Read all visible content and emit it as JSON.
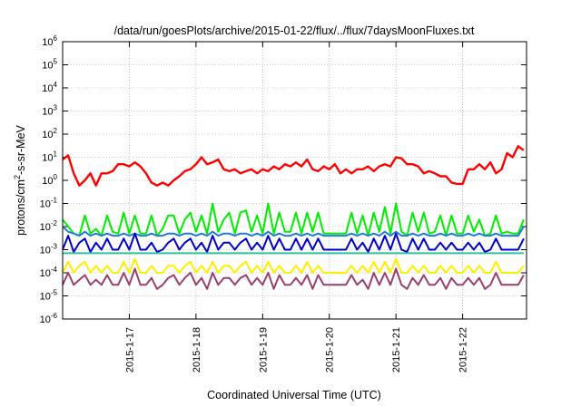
{
  "chart_data": {
    "type": "line",
    "title": "/data/run/goesPlots/archive/2015-01-22/flux/../flux/7daysMoonFluxes.txt",
    "xlabel": "Coordinated Universal Time (UTC)",
    "ylabel": {
      "pre": "protons/cm",
      "sup": "2",
      "post": "-s-sr-MeV"
    },
    "y_scale": "log",
    "ylim": [
      1e-06,
      1000000.0
    ],
    "y_ticks": [
      {
        "base": "10",
        "exp": "6"
      },
      {
        "base": "10",
        "exp": "5"
      },
      {
        "base": "10",
        "exp": "4"
      },
      {
        "base": "10",
        "exp": "3"
      },
      {
        "base": "10",
        "exp": "2"
      },
      {
        "base": "10",
        "exp": "1"
      },
      {
        "base": "10",
        "exp": "0"
      },
      {
        "base": "10",
        "exp": "-1"
      },
      {
        "base": "10",
        "exp": "-2"
      },
      {
        "base": "10",
        "exp": "-3"
      },
      {
        "base": "10",
        "exp": "-4"
      },
      {
        "base": "10",
        "exp": "-5"
      },
      {
        "base": "10",
        "exp": "-6"
      }
    ],
    "xlim": [
      "2015-01-16T00:00",
      "2015-01-22T23:00"
    ],
    "x_ticks": [
      "2015-1-17",
      "2015-1-18",
      "2015-1-19",
      "2015-1-20",
      "2015-1-21",
      "2015-1-22"
    ],
    "grid": true,
    "legend": "none",
    "x": [
      "2015-01-16T00:00",
      "2015-01-16T02:00",
      "2015-01-16T04:00",
      "2015-01-16T06:00",
      "2015-01-16T08:00",
      "2015-01-16T10:00",
      "2015-01-16T12:00",
      "2015-01-16T14:00",
      "2015-01-16T16:00",
      "2015-01-16T18:00",
      "2015-01-16T20:00",
      "2015-01-16T22:00",
      "2015-01-17T00:00",
      "2015-01-17T02:00",
      "2015-01-17T04:00",
      "2015-01-17T06:00",
      "2015-01-17T08:00",
      "2015-01-17T10:00",
      "2015-01-17T12:00",
      "2015-01-17T14:00",
      "2015-01-17T16:00",
      "2015-01-17T18:00",
      "2015-01-17T20:00",
      "2015-01-17T22:00",
      "2015-01-18T00:00",
      "2015-01-18T02:00",
      "2015-01-18T04:00",
      "2015-01-18T06:00",
      "2015-01-18T08:00",
      "2015-01-18T10:00",
      "2015-01-18T12:00",
      "2015-01-18T14:00",
      "2015-01-18T16:00",
      "2015-01-18T18:00",
      "2015-01-18T20:00",
      "2015-01-18T22:00",
      "2015-01-19T00:00",
      "2015-01-19T02:00",
      "2015-01-19T04:00",
      "2015-01-19T06:00",
      "2015-01-19T08:00",
      "2015-01-19T10:00",
      "2015-01-19T12:00",
      "2015-01-19T14:00",
      "2015-01-19T16:00",
      "2015-01-19T18:00",
      "2015-01-19T20:00",
      "2015-01-19T22:00",
      "2015-01-20T00:00",
      "2015-01-20T02:00",
      "2015-01-20T04:00",
      "2015-01-20T06:00",
      "2015-01-20T08:00",
      "2015-01-20T10:00",
      "2015-01-20T12:00",
      "2015-01-20T14:00",
      "2015-01-20T16:00",
      "2015-01-20T18:00",
      "2015-01-20T20:00",
      "2015-01-20T22:00",
      "2015-01-21T00:00",
      "2015-01-21T02:00",
      "2015-01-21T04:00",
      "2015-01-21T06:00",
      "2015-01-21T08:00",
      "2015-01-21T10:00",
      "2015-01-21T12:00",
      "2015-01-21T14:00",
      "2015-01-21T16:00",
      "2015-01-21T18:00",
      "2015-01-21T20:00",
      "2015-01-21T22:00",
      "2015-01-22T00:00",
      "2015-01-22T02:00",
      "2015-01-22T04:00",
      "2015-01-22T06:00",
      "2015-01-22T08:00",
      "2015-01-22T10:00",
      "2015-01-22T12:00",
      "2015-01-22T14:00",
      "2015-01-22T16:00",
      "2015-01-22T18:00",
      "2015-01-22T20:00",
      "2015-01-22T22:00"
    ],
    "series": [
      {
        "color": "#ff0000",
        "values": [
          8,
          12,
          2,
          0.6,
          1,
          2,
          0.6,
          2,
          2,
          2.5,
          5,
          5,
          4,
          6,
          4,
          2,
          0.8,
          0.6,
          0.8,
          0.6,
          1,
          1.5,
          2.5,
          3,
          5,
          10,
          5,
          6,
          8,
          3,
          2.5,
          3,
          2,
          2.5,
          3,
          2,
          3,
          2.5,
          4,
          3,
          5,
          4,
          6,
          4,
          8,
          3,
          2.5,
          4,
          3,
          5,
          2,
          3,
          2,
          3,
          3,
          4,
          2.5,
          4,
          5,
          4,
          10,
          9,
          5,
          5,
          4,
          2,
          2.5,
          2,
          1.5,
          1.5,
          0.8,
          0.7,
          0.7,
          3,
          3,
          5,
          3,
          6,
          2,
          3,
          15,
          10,
          30,
          20
        ]
      },
      {
        "color": "#00ee00",
        "values": [
          0.02,
          0.01,
          0.005,
          0.004,
          0.03,
          0.005,
          0.008,
          0.004,
          0.03,
          0.006,
          0.005,
          0.04,
          0.005,
          0.03,
          0.005,
          0.005,
          0.03,
          0.004,
          0.008,
          0.03,
          0.03,
          0.005,
          0.02,
          0.04,
          0.006,
          0.03,
          0.005,
          0.1,
          0.006,
          0.02,
          0.04,
          0.005,
          0.04,
          0.05,
          0.006,
          0.03,
          0.005,
          0.1,
          0.005,
          0.04,
          0.006,
          0.006,
          0.04,
          0.005,
          0.04,
          0.006,
          0.04,
          0.005,
          0.005,
          0.005,
          0.005,
          0.005,
          0.04,
          0.005,
          0.03,
          0.004,
          0.04,
          0.006,
          0.07,
          0.005,
          0.1,
          0.006,
          0.004,
          0.04,
          0.006,
          0.04,
          0.005,
          0.006,
          0.03,
          0.004,
          0.03,
          0.005,
          0.005,
          0.03,
          0.006,
          0.02,
          0.004,
          0.005,
          0.03,
          0.005,
          0.006,
          0.005,
          0.005,
          0.02
        ]
      },
      {
        "color": "#1e7cdf",
        "values": [
          0.01,
          0.006,
          0.005,
          0.004,
          0.006,
          0.004,
          0.005,
          0.004,
          0.005,
          0.004,
          0.004,
          0.005,
          0.004,
          0.005,
          0.004,
          0.004,
          0.005,
          0.004,
          0.004,
          0.005,
          0.005,
          0.004,
          0.005,
          0.005,
          0.004,
          0.005,
          0.004,
          0.006,
          0.004,
          0.005,
          0.005,
          0.004,
          0.005,
          0.005,
          0.004,
          0.005,
          0.004,
          0.006,
          0.004,
          0.005,
          0.004,
          0.004,
          0.005,
          0.004,
          0.005,
          0.004,
          0.005,
          0.004,
          0.004,
          0.004,
          0.004,
          0.004,
          0.005,
          0.004,
          0.005,
          0.004,
          0.005,
          0.004,
          0.006,
          0.004,
          0.006,
          0.004,
          0.004,
          0.005,
          0.004,
          0.005,
          0.004,
          0.004,
          0.005,
          0.004,
          0.005,
          0.004,
          0.004,
          0.005,
          0.004,
          0.005,
          0.004,
          0.004,
          0.005,
          0.004,
          0.004,
          0.004,
          0.004,
          0.01
        ]
      },
      {
        "color": "#0000cc",
        "values": [
          0.001,
          0.004,
          0.0008,
          0.002,
          0.003,
          0.0008,
          0.002,
          0.001,
          0.003,
          0.001,
          0.001,
          0.003,
          0.001,
          0.005,
          0.001,
          0.001,
          0.002,
          0.0008,
          0.001,
          0.002,
          0.003,
          0.001,
          0.002,
          0.003,
          0.001,
          0.002,
          0.0008,
          0.004,
          0.001,
          0.002,
          0.002,
          0.001,
          0.002,
          0.003,
          0.001,
          0.002,
          0.001,
          0.004,
          0.001,
          0.003,
          0.001,
          0.001,
          0.003,
          0.001,
          0.003,
          0.001,
          0.003,
          0.001,
          0.001,
          0.001,
          0.001,
          0.001,
          0.003,
          0.001,
          0.002,
          0.0008,
          0.003,
          0.001,
          0.004,
          0.001,
          0.005,
          0.001,
          0.0008,
          0.003,
          0.001,
          0.003,
          0.001,
          0.001,
          0.002,
          0.001,
          0.002,
          0.001,
          0.001,
          0.002,
          0.001,
          0.002,
          0.0008,
          0.001,
          0.003,
          0.001,
          0.001,
          0.001,
          0.001,
          0.003
        ]
      },
      {
        "color": "#2ec0a0",
        "values": [
          0.0007,
          0.0007,
          0.0007,
          0.0007,
          0.0007,
          0.0007,
          0.0007,
          0.0007,
          0.0007,
          0.0007,
          0.0007,
          0.0007,
          0.0007,
          0.0007,
          0.0007,
          0.0007,
          0.0007,
          0.0007,
          0.0007,
          0.0007,
          0.0007,
          0.0007,
          0.0007,
          0.0007,
          0.0007,
          0.0007,
          0.0007,
          0.0007,
          0.0007,
          0.0007,
          0.0007,
          0.0007,
          0.0007,
          0.0007,
          0.0007,
          0.0007,
          0.0007,
          0.0007,
          0.0007,
          0.0007,
          0.0007,
          0.0007,
          0.0007,
          0.0007,
          0.0007,
          0.0007,
          0.0007,
          0.0007,
          0.0007,
          0.0007,
          0.0007,
          0.0007,
          0.0007,
          0.0007,
          0.0007,
          0.0007,
          0.0007,
          0.0007,
          0.0007,
          0.0007,
          0.0007,
          0.0007,
          0.0007,
          0.0007,
          0.0007,
          0.0007,
          0.0007,
          0.0007,
          0.0007,
          0.0007,
          0.0007,
          0.0007,
          0.0007,
          0.0007,
          0.0007,
          0.0007,
          0.0007,
          0.0007,
          0.0007,
          0.0007,
          0.0007,
          0.0007,
          0.0007,
          0.0007
        ]
      },
      {
        "color": "#ffee00",
        "values": [
          0.0001,
          0.0003,
          0.0001,
          0.0002,
          0.0003,
          0.0001,
          0.0002,
          0.0001,
          0.0002,
          0.0001,
          0.0001,
          0.0003,
          0.0001,
          0.0004,
          0.0001,
          0.0001,
          0.0002,
          0.0001,
          0.0001,
          0.0002,
          0.0002,
          0.0001,
          0.0002,
          0.0003,
          0.0001,
          0.0002,
          0.0001,
          0.0003,
          0.0001,
          0.0002,
          0.0002,
          0.0001,
          0.0002,
          0.0003,
          0.0001,
          0.0002,
          0.0001,
          0.0003,
          0.0001,
          0.0002,
          0.0001,
          0.0001,
          0.0002,
          0.0001,
          0.0003,
          0.0001,
          0.0002,
          0.0001,
          0.0001,
          0.0001,
          0.0001,
          0.0001,
          0.0002,
          0.0001,
          0.0002,
          0.0001,
          0.0003,
          0.0001,
          0.0003,
          0.0001,
          0.0004,
          0.0001,
          0.0001,
          0.0002,
          0.0001,
          0.0002,
          0.0001,
          0.0001,
          0.0002,
          0.0001,
          0.0002,
          0.0001,
          0.0001,
          0.0002,
          0.0001,
          0.0002,
          0.0001,
          0.0001,
          0.0003,
          0.0001,
          0.0001,
          0.0001,
          0.0001,
          0.0002
        ]
      },
      {
        "color": "#9b3f6e",
        "values": [
          3e-05,
          0.0001,
          3e-05,
          5e-05,
          8e-05,
          3e-05,
          5e-05,
          3e-05,
          8e-05,
          3e-05,
          3e-05,
          0.0001,
          3e-05,
          0.00015,
          3e-05,
          3e-05,
          6e-05,
          2e-05,
          3e-05,
          6e-05,
          8e-05,
          3e-05,
          6e-05,
          0.0001,
          3e-05,
          6e-05,
          2e-05,
          0.0001,
          3e-05,
          6e-05,
          6e-05,
          3e-05,
          6e-05,
          8e-05,
          3e-05,
          6e-05,
          3e-05,
          0.0001,
          2e-05,
          8e-05,
          3e-05,
          3e-05,
          6e-05,
          3e-05,
          8e-05,
          2e-05,
          8e-05,
          3e-05,
          3e-05,
          3e-05,
          3e-05,
          3e-05,
          8e-05,
          3e-05,
          5e-05,
          2e-05,
          0.0001,
          3e-05,
          0.0001,
          3e-05,
          0.00015,
          3e-05,
          2e-05,
          6e-05,
          3e-05,
          8e-05,
          3e-05,
          3e-05,
          6e-05,
          2e-05,
          6e-05,
          3e-05,
          3e-05,
          6e-05,
          3e-05,
          6e-05,
          2e-05,
          3e-05,
          0.0001,
          3e-05,
          3e-05,
          3e-05,
          3e-05,
          8e-05
        ]
      }
    ]
  }
}
